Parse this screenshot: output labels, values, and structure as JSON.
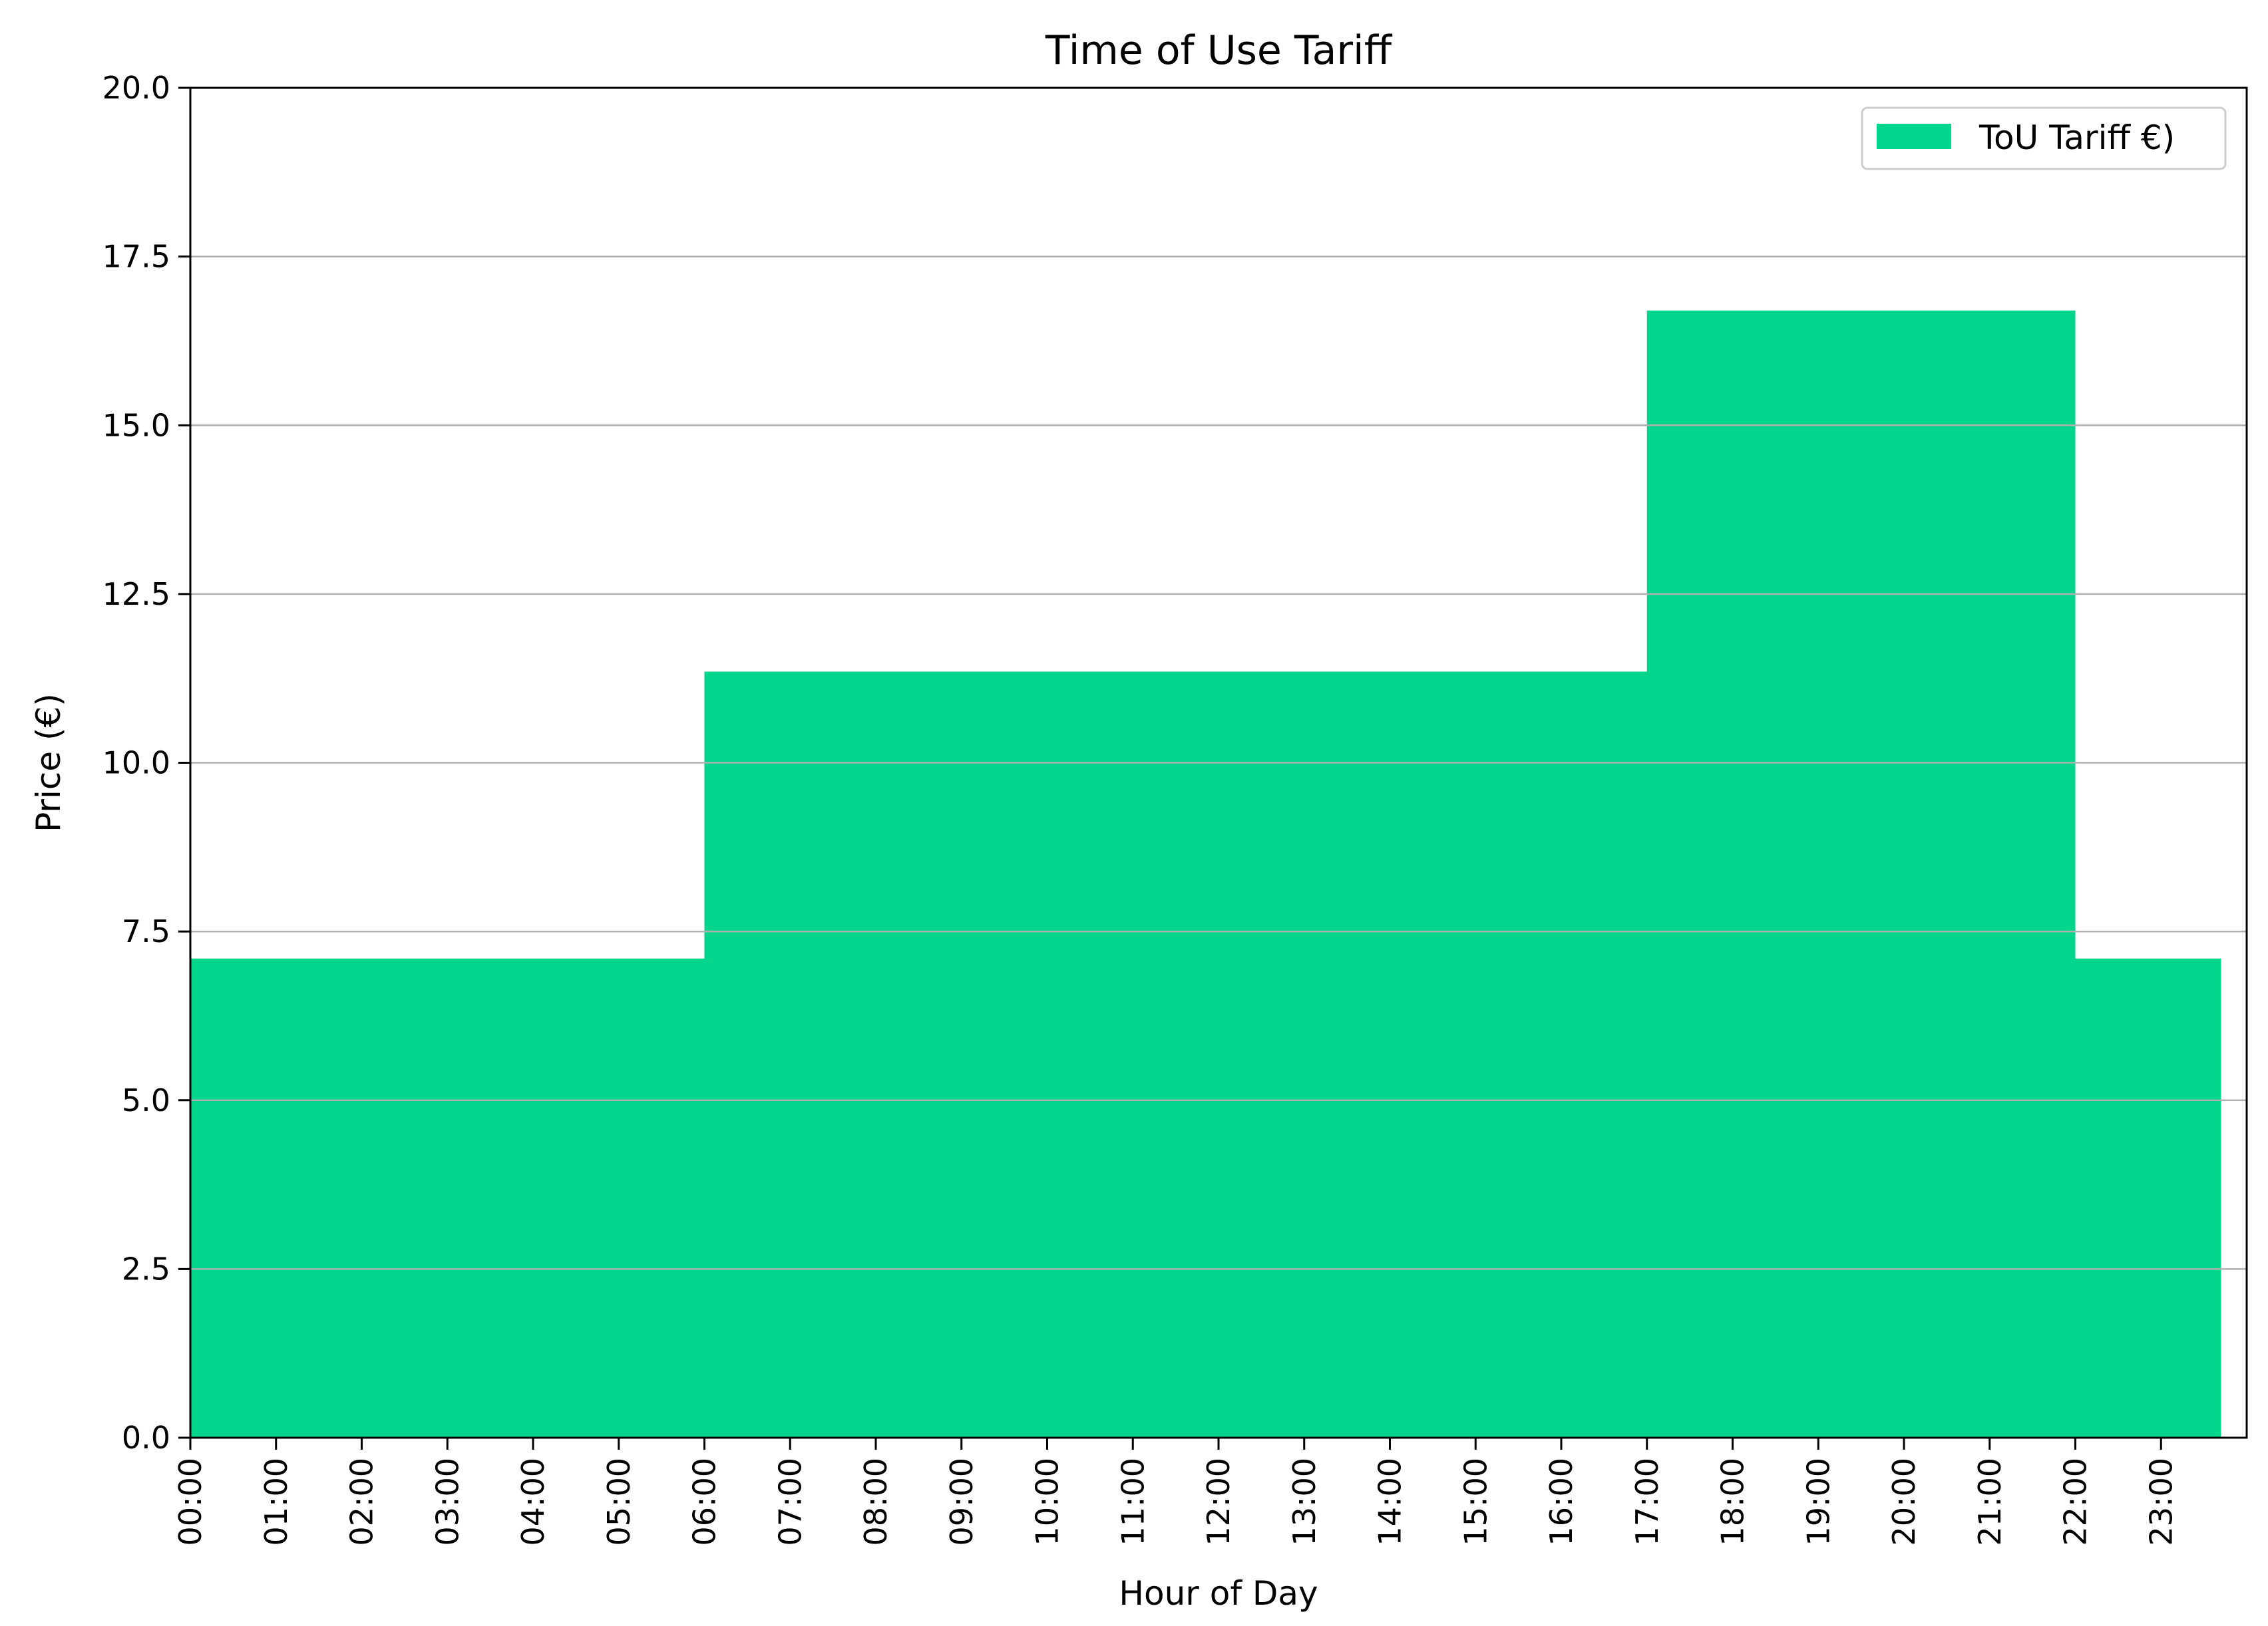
{
  "chart_data": {
    "type": "area",
    "title": "Time of Use Tariff",
    "xlabel": "Hour of Day",
    "ylabel": "Price (€)",
    "ylim": [
      0,
      20
    ],
    "yticks": [
      "0.0",
      "2.5",
      "5.0",
      "7.5",
      "10.0",
      "12.5",
      "15.0",
      "17.5",
      "20.0"
    ],
    "xlim": [
      0,
      24
    ],
    "categories": [
      "00:00",
      "01:00",
      "02:00",
      "03:00",
      "04:00",
      "05:00",
      "06:00",
      "07:00",
      "08:00",
      "09:00",
      "10:00",
      "11:00",
      "12:00",
      "13:00",
      "14:00",
      "15:00",
      "16:00",
      "17:00",
      "18:00",
      "19:00",
      "20:00",
      "21:00",
      "22:00",
      "23:00"
    ],
    "series": [
      {
        "name": "ToU Tariff €)",
        "color": "#00d68b",
        "step": "post",
        "values": [
          7.1,
          7.1,
          7.1,
          7.1,
          7.1,
          7.1,
          11.35,
          11.35,
          11.35,
          11.35,
          11.35,
          11.35,
          11.35,
          11.35,
          11.35,
          11.35,
          11.35,
          16.7,
          16.7,
          16.7,
          16.7,
          16.7,
          7.1,
          7.1
        ]
      }
    ],
    "grid": "y",
    "legend": "top-right"
  }
}
